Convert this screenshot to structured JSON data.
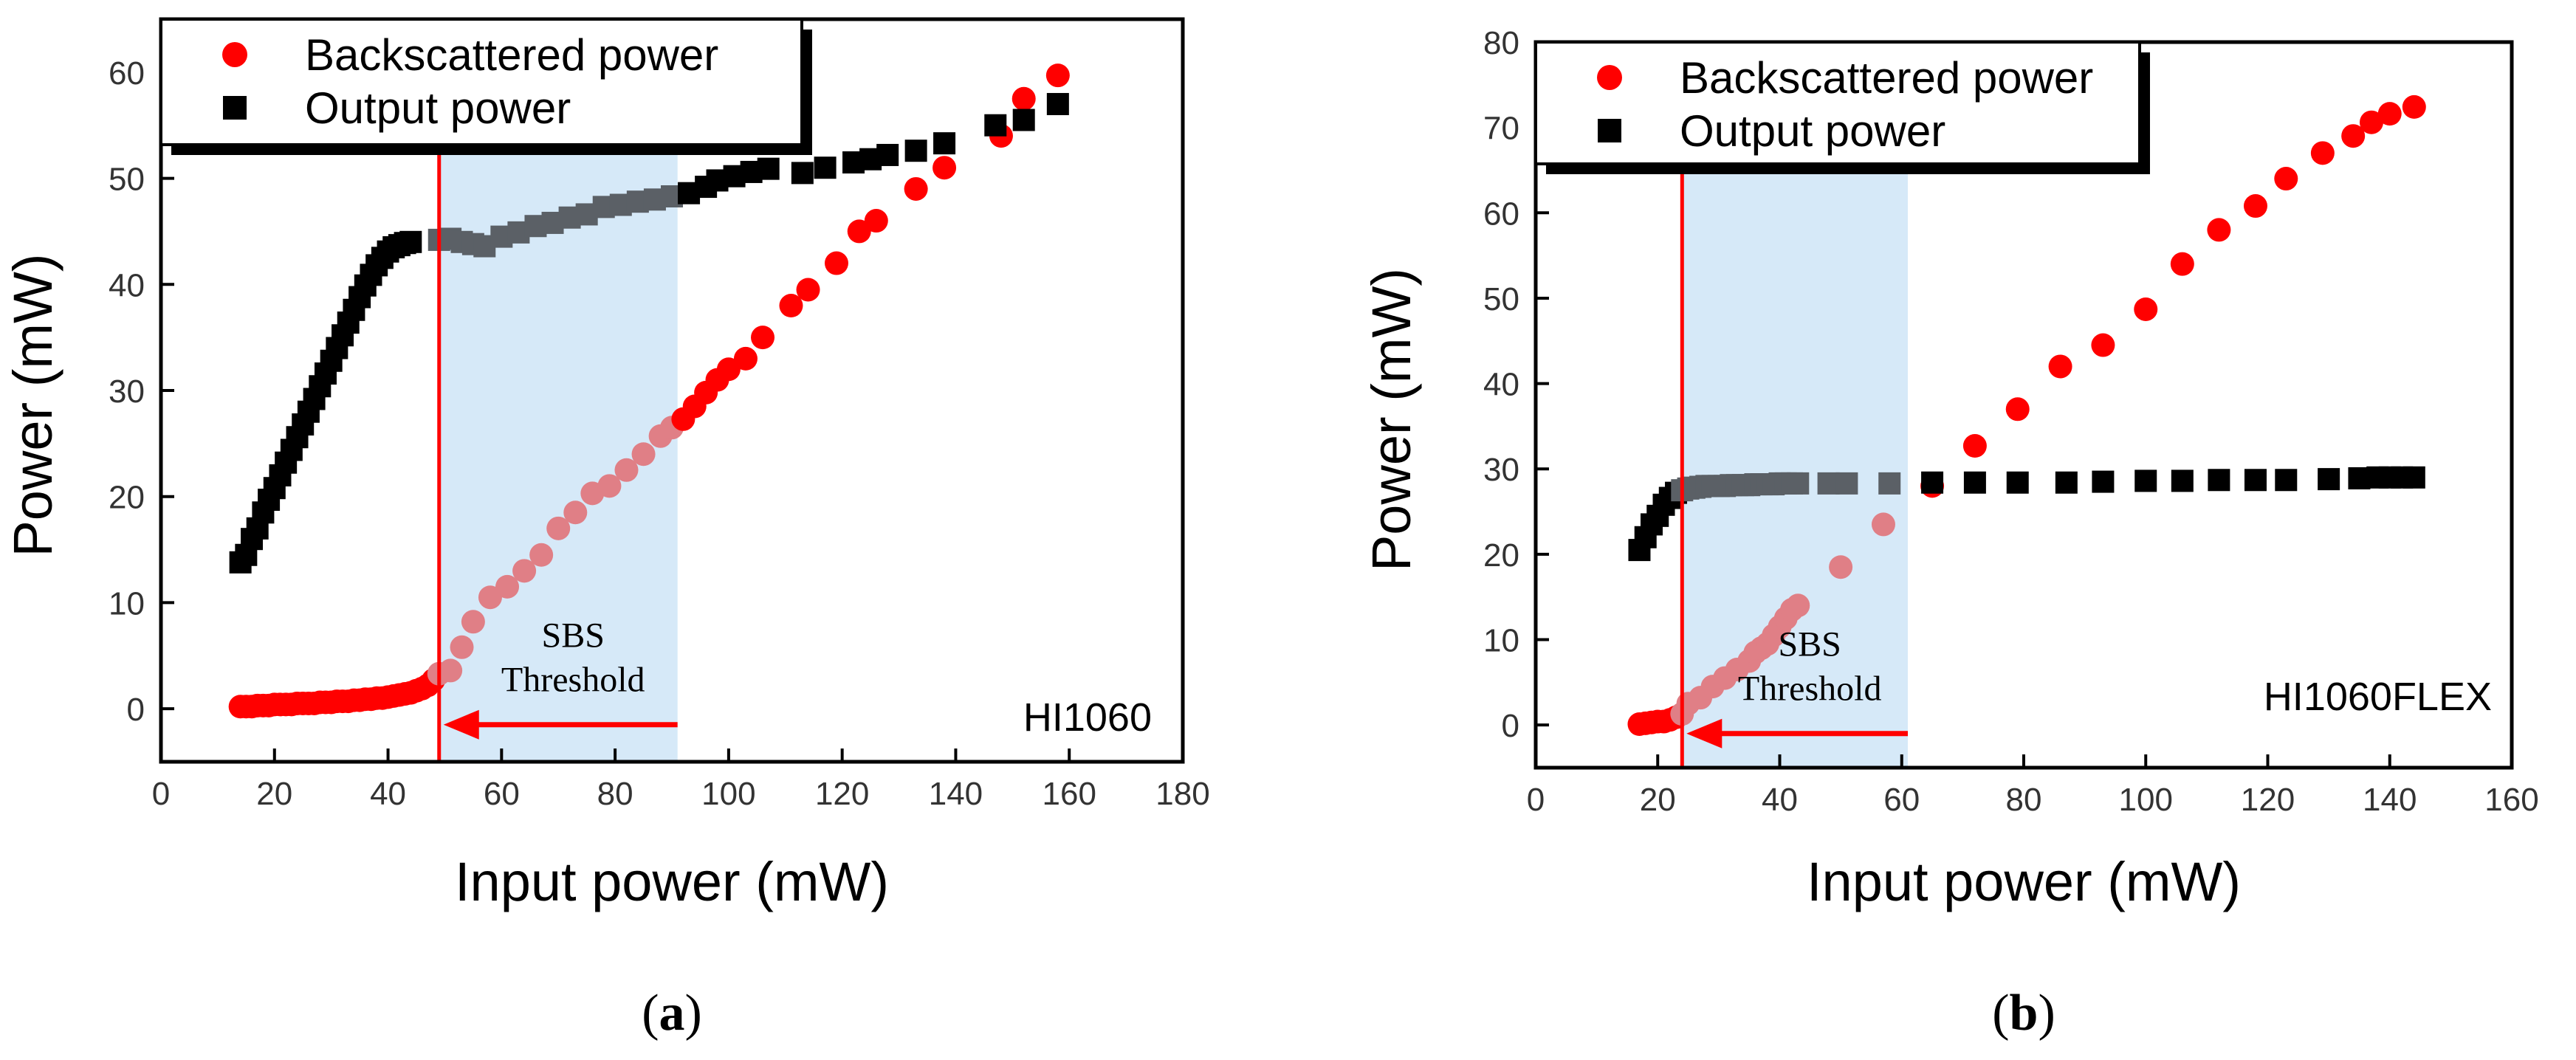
{
  "colors": {
    "backscattered": "#ff0000",
    "backscattered_shaded": "#e07f86",
    "output": "#000000",
    "output_shaded": "#5b6066",
    "threshold_line": "#ff0000",
    "shade": "#d6e9f8"
  },
  "chart_data": [
    {
      "type": "scatter",
      "caption": {
        "open": "(",
        "letter": "a",
        "close": ")"
      },
      "xlabel": "Input power (mW)",
      "ylabel": "Power (mW)",
      "xlim": [
        0,
        180
      ],
      "ylim": [
        -5,
        65
      ],
      "xticks": [
        0,
        20,
        40,
        60,
        80,
        100,
        120,
        140,
        160,
        180
      ],
      "yticks": [
        0,
        10,
        20,
        30,
        40,
        50,
        60
      ],
      "grid": false,
      "legend_position": "top-left",
      "annotation_label": "HI1060",
      "threshold": {
        "x": 49,
        "shade_to": 91,
        "arrow_y": -1.5,
        "label": [
          "SBS",
          "Threshold"
        ]
      },
      "series": [
        {
          "name": "Backscattered power",
          "marker": "circle",
          "points": [
            [
              14,
              0.2
            ],
            [
              15,
              0.2
            ],
            [
              16,
              0.2
            ],
            [
              17,
              0.3
            ],
            [
              18,
              0.3
            ],
            [
              19,
              0.3
            ],
            [
              20,
              0.4
            ],
            [
              21,
              0.4
            ],
            [
              22,
              0.4
            ],
            [
              23,
              0.4
            ],
            [
              24,
              0.5
            ],
            [
              25,
              0.5
            ],
            [
              26,
              0.5
            ],
            [
              27,
              0.5
            ],
            [
              28,
              0.6
            ],
            [
              29,
              0.6
            ],
            [
              30,
              0.6
            ],
            [
              31,
              0.7
            ],
            [
              32,
              0.7
            ],
            [
              33,
              0.7
            ],
            [
              34,
              0.8
            ],
            [
              35,
              0.8
            ],
            [
              36,
              0.9
            ],
            [
              37,
              0.9
            ],
            [
              38,
              1.0
            ],
            [
              39,
              1.0
            ],
            [
              40,
              1.1
            ],
            [
              41,
              1.2
            ],
            [
              42,
              1.3
            ],
            [
              43,
              1.4
            ],
            [
              44,
              1.5
            ],
            [
              45,
              1.7
            ],
            [
              46,
              1.9
            ],
            [
              47,
              2.2
            ],
            [
              48,
              2.7
            ],
            [
              49,
              3.3
            ],
            [
              51,
              3.6
            ],
            [
              53,
              5.8
            ],
            [
              55,
              8.2
            ],
            [
              58,
              10.5
            ],
            [
              61,
              11.5
            ],
            [
              64,
              13.0
            ],
            [
              67,
              14.5
            ],
            [
              70,
              17.0
            ],
            [
              73,
              18.5
            ],
            [
              76,
              20.3
            ],
            [
              79,
              21.0
            ],
            [
              82,
              22.5
            ],
            [
              85,
              24.0
            ],
            [
              88,
              25.7
            ],
            [
              90,
              26.5
            ],
            [
              92,
              27.3
            ],
            [
              94,
              28.5
            ],
            [
              96,
              29.8
            ],
            [
              98,
              31.0
            ],
            [
              100,
              32.0
            ],
            [
              103,
              33.0
            ],
            [
              106,
              35.0
            ],
            [
              111,
              38.0
            ],
            [
              114,
              39.5
            ],
            [
              119,
              42.0
            ],
            [
              123,
              45.0
            ],
            [
              126,
              46.0
            ],
            [
              133,
              49.0
            ],
            [
              138,
              51.0
            ],
            [
              148,
              54.0
            ],
            [
              152,
              57.5
            ],
            [
              158,
              59.7
            ]
          ]
        },
        {
          "name": "Output power",
          "marker": "square",
          "points": [
            [
              14,
              13.8
            ],
            [
              15,
              14.5
            ],
            [
              16,
              16.0
            ],
            [
              17,
              17.0
            ],
            [
              18,
              18.5
            ],
            [
              19,
              19.7
            ],
            [
              20,
              20.8
            ],
            [
              21,
              22.0
            ],
            [
              22,
              23.2
            ],
            [
              23,
              24.4
            ],
            [
              24,
              25.6
            ],
            [
              25,
              26.8
            ],
            [
              26,
              28.0
            ],
            [
              27,
              29.2
            ],
            [
              28,
              30.4
            ],
            [
              29,
              31.6
            ],
            [
              30,
              32.8
            ],
            [
              31,
              34.0
            ],
            [
              32,
              35.2
            ],
            [
              33,
              36.4
            ],
            [
              34,
              37.6
            ],
            [
              35,
              38.8
            ],
            [
              36,
              39.9
            ],
            [
              37,
              40.9
            ],
            [
              38,
              41.8
            ],
            [
              39,
              42.5
            ],
            [
              40,
              43.1
            ],
            [
              41,
              43.5
            ],
            [
              42,
              43.7
            ],
            [
              43,
              43.9
            ],
            [
              44,
              44.0
            ],
            [
              49,
              44.2
            ],
            [
              51,
              44.3
            ],
            [
              53,
              44.0
            ],
            [
              55,
              43.8
            ],
            [
              57,
              43.6
            ],
            [
              60,
              44.5
            ],
            [
              63,
              44.9
            ],
            [
              66,
              45.5
            ],
            [
              69,
              45.8
            ],
            [
              72,
              46.3
            ],
            [
              75,
              46.6
            ],
            [
              78,
              47.3
            ],
            [
              81,
              47.5
            ],
            [
              84,
              47.8
            ],
            [
              87,
              48.0
            ],
            [
              90,
              48.3
            ],
            [
              93,
              48.6
            ],
            [
              96,
              49.2
            ],
            [
              98,
              49.8
            ],
            [
              101,
              50.2
            ],
            [
              104,
              50.6
            ],
            [
              107,
              50.9
            ],
            [
              113,
              50.5
            ],
            [
              117,
              51.0
            ],
            [
              122,
              51.5
            ],
            [
              125,
              51.8
            ],
            [
              128,
              52.2
            ],
            [
              133,
              52.6
            ],
            [
              138,
              53.3
            ],
            [
              147,
              55.0
            ],
            [
              152,
              55.5
            ],
            [
              158,
              57.0
            ]
          ]
        }
      ]
    },
    {
      "type": "scatter",
      "caption": {
        "open": "(",
        "letter": "b",
        "close": ")"
      },
      "xlabel": "Input power (mW)",
      "ylabel": "Power (mW)",
      "xlim": [
        0,
        160
      ],
      "ylim": [
        -5,
        80
      ],
      "xticks": [
        0,
        20,
        40,
        60,
        80,
        100,
        120,
        140,
        160
      ],
      "yticks": [
        0,
        10,
        20,
        30,
        40,
        50,
        60,
        70,
        80
      ],
      "grid": false,
      "legend_position": "top-left",
      "annotation_label": "HI1060FLEX",
      "threshold": {
        "x": 24,
        "shade_to": 61,
        "arrow_y": -1.0,
        "label": [
          "SBS",
          "Threshold"
        ]
      },
      "series": [
        {
          "name": "Backscattered power",
          "marker": "circle",
          "points": [
            [
              17,
              0.1
            ],
            [
              18,
              0.2
            ],
            [
              19,
              0.3
            ],
            [
              20,
              0.4
            ],
            [
              21,
              0.4
            ],
            [
              22,
              0.6
            ],
            [
              23,
              0.9
            ],
            [
              24,
              1.3
            ],
            [
              25,
              2.5
            ],
            [
              27,
              3.2
            ],
            [
              29,
              4.5
            ],
            [
              31,
              5.5
            ],
            [
              33,
              6.5
            ],
            [
              35,
              7.5
            ],
            [
              36,
              8.5
            ],
            [
              37,
              9.0
            ],
            [
              38,
              9.5
            ],
            [
              39,
              10.5
            ],
            [
              40,
              11.5
            ],
            [
              41,
              12.5
            ],
            [
              42,
              13.5
            ],
            [
              43,
              14.0
            ],
            [
              50,
              18.5
            ],
            [
              57,
              23.5
            ],
            [
              65,
              28.0
            ],
            [
              72,
              32.7
            ],
            [
              79,
              37.0
            ],
            [
              86,
              42.0
            ],
            [
              93,
              44.5
            ],
            [
              100,
              48.7
            ],
            [
              106,
              54.0
            ],
            [
              112,
              58.0
            ],
            [
              118,
              60.8
            ],
            [
              123,
              64.0
            ],
            [
              129,
              67.0
            ],
            [
              134,
              69.0
            ],
            [
              137,
              70.6
            ],
            [
              140,
              71.6
            ],
            [
              144,
              72.4
            ]
          ]
        },
        {
          "name": "Output power",
          "marker": "square",
          "points": [
            [
              17,
              20.5
            ],
            [
              18,
              22.0
            ],
            [
              19,
              23.5
            ],
            [
              20,
              24.5
            ],
            [
              21,
              25.8
            ],
            [
              22,
              26.6
            ],
            [
              23,
              27.2
            ],
            [
              24,
              27.5
            ],
            [
              25,
              27.7
            ],
            [
              26,
              27.8
            ],
            [
              27,
              27.9
            ],
            [
              28,
              28.0
            ],
            [
              29,
              28.0
            ],
            [
              30,
              28.0
            ],
            [
              31,
              28.0
            ],
            [
              32,
              28.1
            ],
            [
              33,
              28.1
            ],
            [
              34,
              28.1
            ],
            [
              35,
              28.1
            ],
            [
              36,
              28.2
            ],
            [
              37,
              28.2
            ],
            [
              38,
              28.2
            ],
            [
              39,
              28.2
            ],
            [
              40,
              28.3
            ],
            [
              41,
              28.3
            ],
            [
              42,
              28.3
            ],
            [
              43,
              28.3
            ],
            [
              48,
              28.3
            ],
            [
              51,
              28.3
            ],
            [
              58,
              28.3
            ],
            [
              65,
              28.4
            ],
            [
              72,
              28.4
            ],
            [
              79,
              28.4
            ],
            [
              87,
              28.4
            ],
            [
              93,
              28.5
            ],
            [
              100,
              28.6
            ],
            [
              106,
              28.6
            ],
            [
              112,
              28.7
            ],
            [
              118,
              28.7
            ],
            [
              123,
              28.7
            ],
            [
              130,
              28.8
            ],
            [
              135,
              28.9
            ],
            [
              138,
              29.0
            ],
            [
              140,
              29.0
            ],
            [
              142,
              29.0
            ],
            [
              144,
              29.0
            ]
          ]
        }
      ]
    }
  ]
}
